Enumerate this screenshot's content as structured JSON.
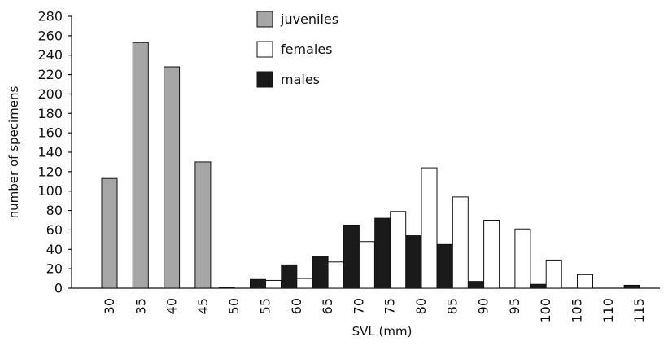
{
  "chart_data": {
    "type": "bar",
    "title": "",
    "xlabel": "SVL (mm)",
    "ylabel": "number of specimens",
    "ylim": [
      0,
      280
    ],
    "yticks": [
      0,
      20,
      40,
      60,
      80,
      100,
      120,
      140,
      160,
      180,
      200,
      220,
      240,
      260,
      280
    ],
    "grid": false,
    "legend_position": "top-center",
    "categories": [
      "30",
      "35",
      "40",
      "45",
      "50",
      "55",
      "60",
      "65",
      "70",
      "75",
      "80",
      "85",
      "90",
      "95",
      "100",
      "105",
      "110",
      "115"
    ],
    "series": [
      {
        "name": "juveniles",
        "color": "#a6a6a6",
        "values": [
          113,
          253,
          228,
          130,
          0,
          0,
          0,
          0,
          0,
          0,
          0,
          0,
          0,
          0,
          0,
          0,
          0,
          0
        ]
      },
      {
        "name": "females",
        "color": "#ffffff",
        "values": [
          0,
          0,
          0,
          0,
          0,
          8,
          10,
          27,
          48,
          79,
          124,
          94,
          70,
          61,
          29,
          14,
          0,
          0
        ]
      },
      {
        "name": "males",
        "color": "#1a1a1a",
        "values": [
          0,
          0,
          0,
          0,
          1,
          9,
          24,
          33,
          65,
          72,
          54,
          45,
          7,
          0,
          4,
          0,
          0,
          3
        ]
      }
    ]
  }
}
